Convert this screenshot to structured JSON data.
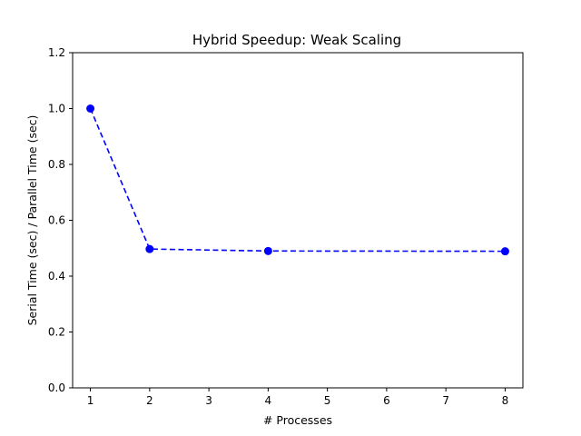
{
  "chart_data": {
    "type": "line",
    "title": "Hybrid Speedup: Weak Scaling",
    "xlabel": "# Processes",
    "ylabel": "Serial Time (sec) / Parallel Time (sec)",
    "xlim": [
      0.7,
      8.3
    ],
    "ylim": [
      0,
      1.2
    ],
    "xticks": [
      1,
      2,
      3,
      4,
      5,
      6,
      7,
      8
    ],
    "yticks": [
      0.0,
      0.2,
      0.4,
      0.6,
      0.8,
      1.0,
      1.2
    ],
    "ytick_labels": [
      "0.0",
      "0.2",
      "0.4",
      "0.6",
      "0.8",
      "1.0",
      "1.2"
    ],
    "grid": false,
    "series": [
      {
        "color": "#0000ff",
        "line_style": "dashed",
        "marker": "circle",
        "x": [
          1,
          2,
          4,
          8
        ],
        "y": [
          1.0,
          0.497,
          0.49,
          0.489
        ]
      }
    ]
  }
}
